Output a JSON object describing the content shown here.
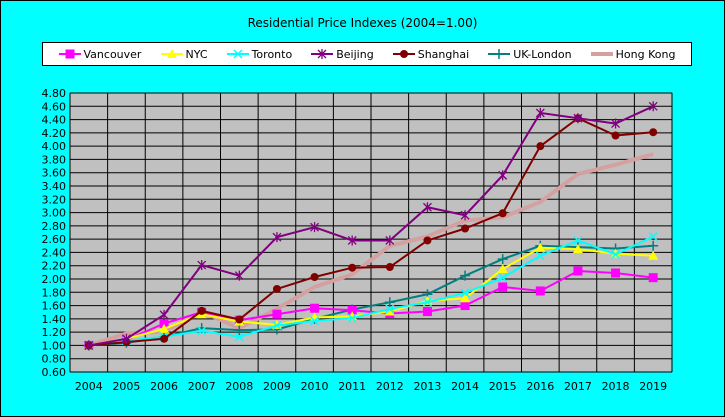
{
  "chart_data": {
    "type": "line",
    "title": "Residential Price Indexes (2004=1.00)",
    "xlabel": "",
    "ylabel": "",
    "ylim": [
      0.6,
      4.8
    ],
    "ytick_step": 0.2,
    "grid": true,
    "legend_position": "top",
    "categories": [
      "2004",
      "2005",
      "2006",
      "2007",
      "2008",
      "2009",
      "2010",
      "2011",
      "2012",
      "2013",
      "2014",
      "2015",
      "2016",
      "2017",
      "2018",
      "2019"
    ],
    "series": [
      {
        "name": "Vancouver",
        "color": "#ff00ff",
        "marker": "square",
        "width": 2,
        "values": [
          1.0,
          1.08,
          1.33,
          1.5,
          1.38,
          1.47,
          1.56,
          1.53,
          1.48,
          1.51,
          1.6,
          1.88,
          1.82,
          2.12,
          2.09,
          2.02
        ]
      },
      {
        "name": "NYC",
        "color": "#ffff00",
        "marker": "triangle",
        "width": 2,
        "values": [
          1.0,
          1.1,
          1.25,
          1.47,
          1.36,
          1.31,
          1.42,
          1.44,
          1.51,
          1.67,
          1.71,
          2.15,
          2.47,
          2.45,
          2.38,
          2.35
        ]
      },
      {
        "name": "Toronto",
        "color": "#00ffff",
        "marker": "x",
        "width": 2,
        "values": [
          1.0,
          1.07,
          1.13,
          1.22,
          1.13,
          1.3,
          1.37,
          1.41,
          1.55,
          1.65,
          1.79,
          2.02,
          2.35,
          2.58,
          2.37,
          2.64
        ]
      },
      {
        "name": "Beijing",
        "color": "#800080",
        "marker": "star",
        "width": 2,
        "values": [
          1.0,
          1.1,
          1.46,
          2.21,
          2.05,
          2.63,
          2.78,
          2.58,
          2.58,
          3.08,
          2.96,
          3.56,
          4.5,
          4.42,
          4.34,
          4.6
        ]
      },
      {
        "name": "Shanghai",
        "color": "#800000",
        "marker": "circle",
        "width": 2,
        "values": [
          1.0,
          1.05,
          1.1,
          1.52,
          1.39,
          1.85,
          2.03,
          2.17,
          2.18,
          2.58,
          2.76,
          2.99,
          4.0,
          4.42,
          4.16,
          4.21
        ]
      },
      {
        "name": "UK-London",
        "color": "#008080",
        "marker": "plus",
        "width": 2,
        "values": [
          1.0,
          1.04,
          1.13,
          1.26,
          1.23,
          1.24,
          1.4,
          1.54,
          1.65,
          1.77,
          2.05,
          2.3,
          2.5,
          2.48,
          2.46,
          2.5
        ]
      },
      {
        "name": "Hong Kong",
        "color": "#d4a0a0",
        "marker": "none",
        "width": 4,
        "values": [
          1.0,
          1.18,
          1.21,
          1.51,
          1.26,
          1.55,
          1.88,
          2.07,
          2.5,
          2.64,
          2.88,
          2.93,
          3.16,
          3.58,
          3.72,
          3.88
        ]
      }
    ]
  }
}
